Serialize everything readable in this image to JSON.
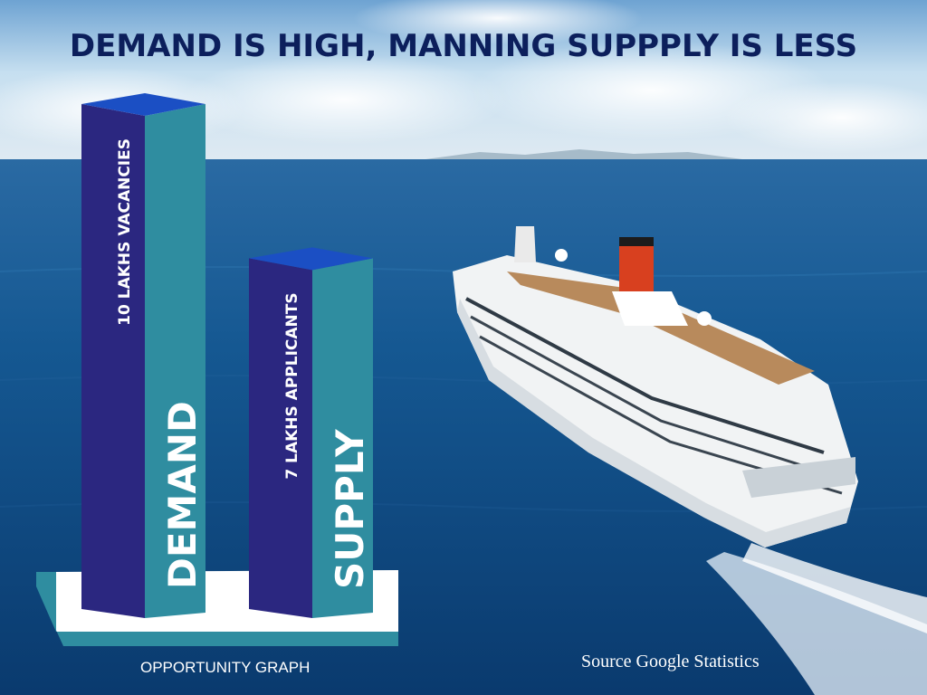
{
  "title": "DEMAND IS HIGH, MANNING SUPPPLY IS LESS",
  "footer_label": "OPPORTUNITY GRAPH",
  "source": "Source Google Statistics",
  "colors": {
    "title": "#0c1f5c",
    "bar_front": "#2b2780",
    "bar_side": "#2f8da0",
    "bar_top": "#1b4fc4",
    "platform_top": "#ffffff",
    "platform_edge": "#2f8da0",
    "sea": "#0d4a86",
    "sky": "#b9d7ec"
  },
  "chart_data": {
    "type": "bar",
    "title": "DEMAND IS HIGH, MANNING SUPPPLY IS LESS",
    "xlabel": "OPPORTUNITY GRAPH",
    "categories": [
      "DEMAND",
      "SUPPLY"
    ],
    "values": [
      10,
      7
    ],
    "unit": "lakhs",
    "value_labels": [
      "10 LAKHS VACANCIES",
      "7 LAKHS APPLICANTS"
    ],
    "ylim": [
      0,
      10
    ],
    "grid": false,
    "legend": "none"
  }
}
